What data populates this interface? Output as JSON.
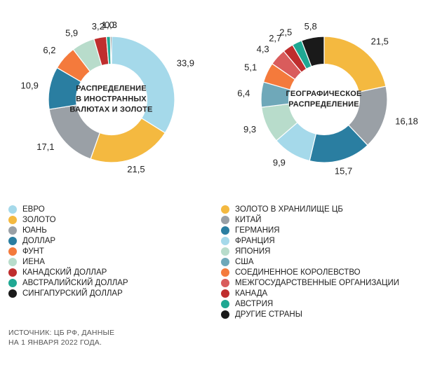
{
  "background_color": "#ffffff",
  "chart_left": {
    "type": "donut",
    "title": "РАСПРЕДЕЛЕНИЕ\nВ ИНОСТРАННЫХ\nВАЛЮТАХ И ЗОЛОТЕ",
    "title_fontsize": 11,
    "inner_radius_ratio": 0.56,
    "segments": [
      {
        "label": "ЕВРО",
        "value": 33.9,
        "display": "33,9",
        "color": "#a5d9ea"
      },
      {
        "label": "ЗОЛОТО",
        "value": 21.5,
        "display": "21,5",
        "color": "#f4b940"
      },
      {
        "label": "ЮАНЬ",
        "value": 17.1,
        "display": "17,1",
        "color": "#9aa0a6"
      },
      {
        "label": "ДОЛЛАР",
        "value": 10.9,
        "display": "10,9",
        "color": "#2a7ea1"
      },
      {
        "label": "ФУНТ",
        "value": 6.2,
        "display": "6,2",
        "color": "#f47a3c"
      },
      {
        "label": "ИЕНА",
        "value": 5.9,
        "display": "5,9",
        "color": "#b8dccb"
      },
      {
        "label": "КАНАДСКИЙ ДОЛЛАР",
        "value": 3.2,
        "display": "3,2",
        "color": "#bf2e2e"
      },
      {
        "label": "АВСТРАЛИЙСКИЙ ДОЛЛАР",
        "value": 1.0,
        "display": "1,0",
        "color": "#1fa893"
      },
      {
        "label": "СИНГАПУРСКИЙ ДОЛЛАР",
        "value": 0.3,
        "display": "0,3",
        "color": "#1a1a1a"
      }
    ],
    "start_angle_deg": 0
  },
  "chart_right": {
    "type": "donut",
    "title": "ГЕОГРАФИЧЕСКОЕ\nРАСПРЕДЕЛЕНИЕ",
    "title_fontsize": 11,
    "inner_radius_ratio": 0.56,
    "segments": [
      {
        "label": "ЗОЛОТО В ХРАНИЛИЩЕ ЦБ",
        "value": 21.5,
        "display": "21,5",
        "color": "#f4b940"
      },
      {
        "label": "КИТАЙ",
        "value": 16.18,
        "display": "16,18",
        "color": "#9aa0a6"
      },
      {
        "label": "ГЕРМАНИЯ",
        "value": 15.7,
        "display": "15,7",
        "color": "#2a7ea1"
      },
      {
        "label": "ФРАНЦИЯ",
        "value": 9.9,
        "display": "9,9",
        "color": "#a5d9ea"
      },
      {
        "label": "ЯПОНИЯ",
        "value": 9.3,
        "display": "9,3",
        "color": "#b8dccb"
      },
      {
        "label": "США",
        "value": 6.4,
        "display": "6,4",
        "color": "#6fa8b9"
      },
      {
        "label": "СОЕДИНЕННОЕ КОРОЛЕВСТВО",
        "value": 5.1,
        "display": "5,1",
        "color": "#f47a3c"
      },
      {
        "label": "МЕЖГОСУДАРСТВЕННЫЕ ОРГАНИЗАЦИИ",
        "value": 4.3,
        "display": "4,3",
        "color": "#d95c5c"
      },
      {
        "label": "КАНАДА",
        "value": 2.7,
        "display": "2,7",
        "color": "#bf2e2e"
      },
      {
        "label": "АВСТРИЯ",
        "value": 2.5,
        "display": "2,5",
        "color": "#1fa893"
      },
      {
        "label": "ДРУГИЕ СТРАНЫ",
        "value": 5.8,
        "display": "5,8",
        "color": "#1a1a1a"
      }
    ],
    "start_angle_deg": 0
  },
  "source_line1": "ИСТОЧНИК: ЦБ РФ, ДАННЫЕ",
  "source_line2": "НА 1 ЯНВАРЯ 2022 ГОДА."
}
